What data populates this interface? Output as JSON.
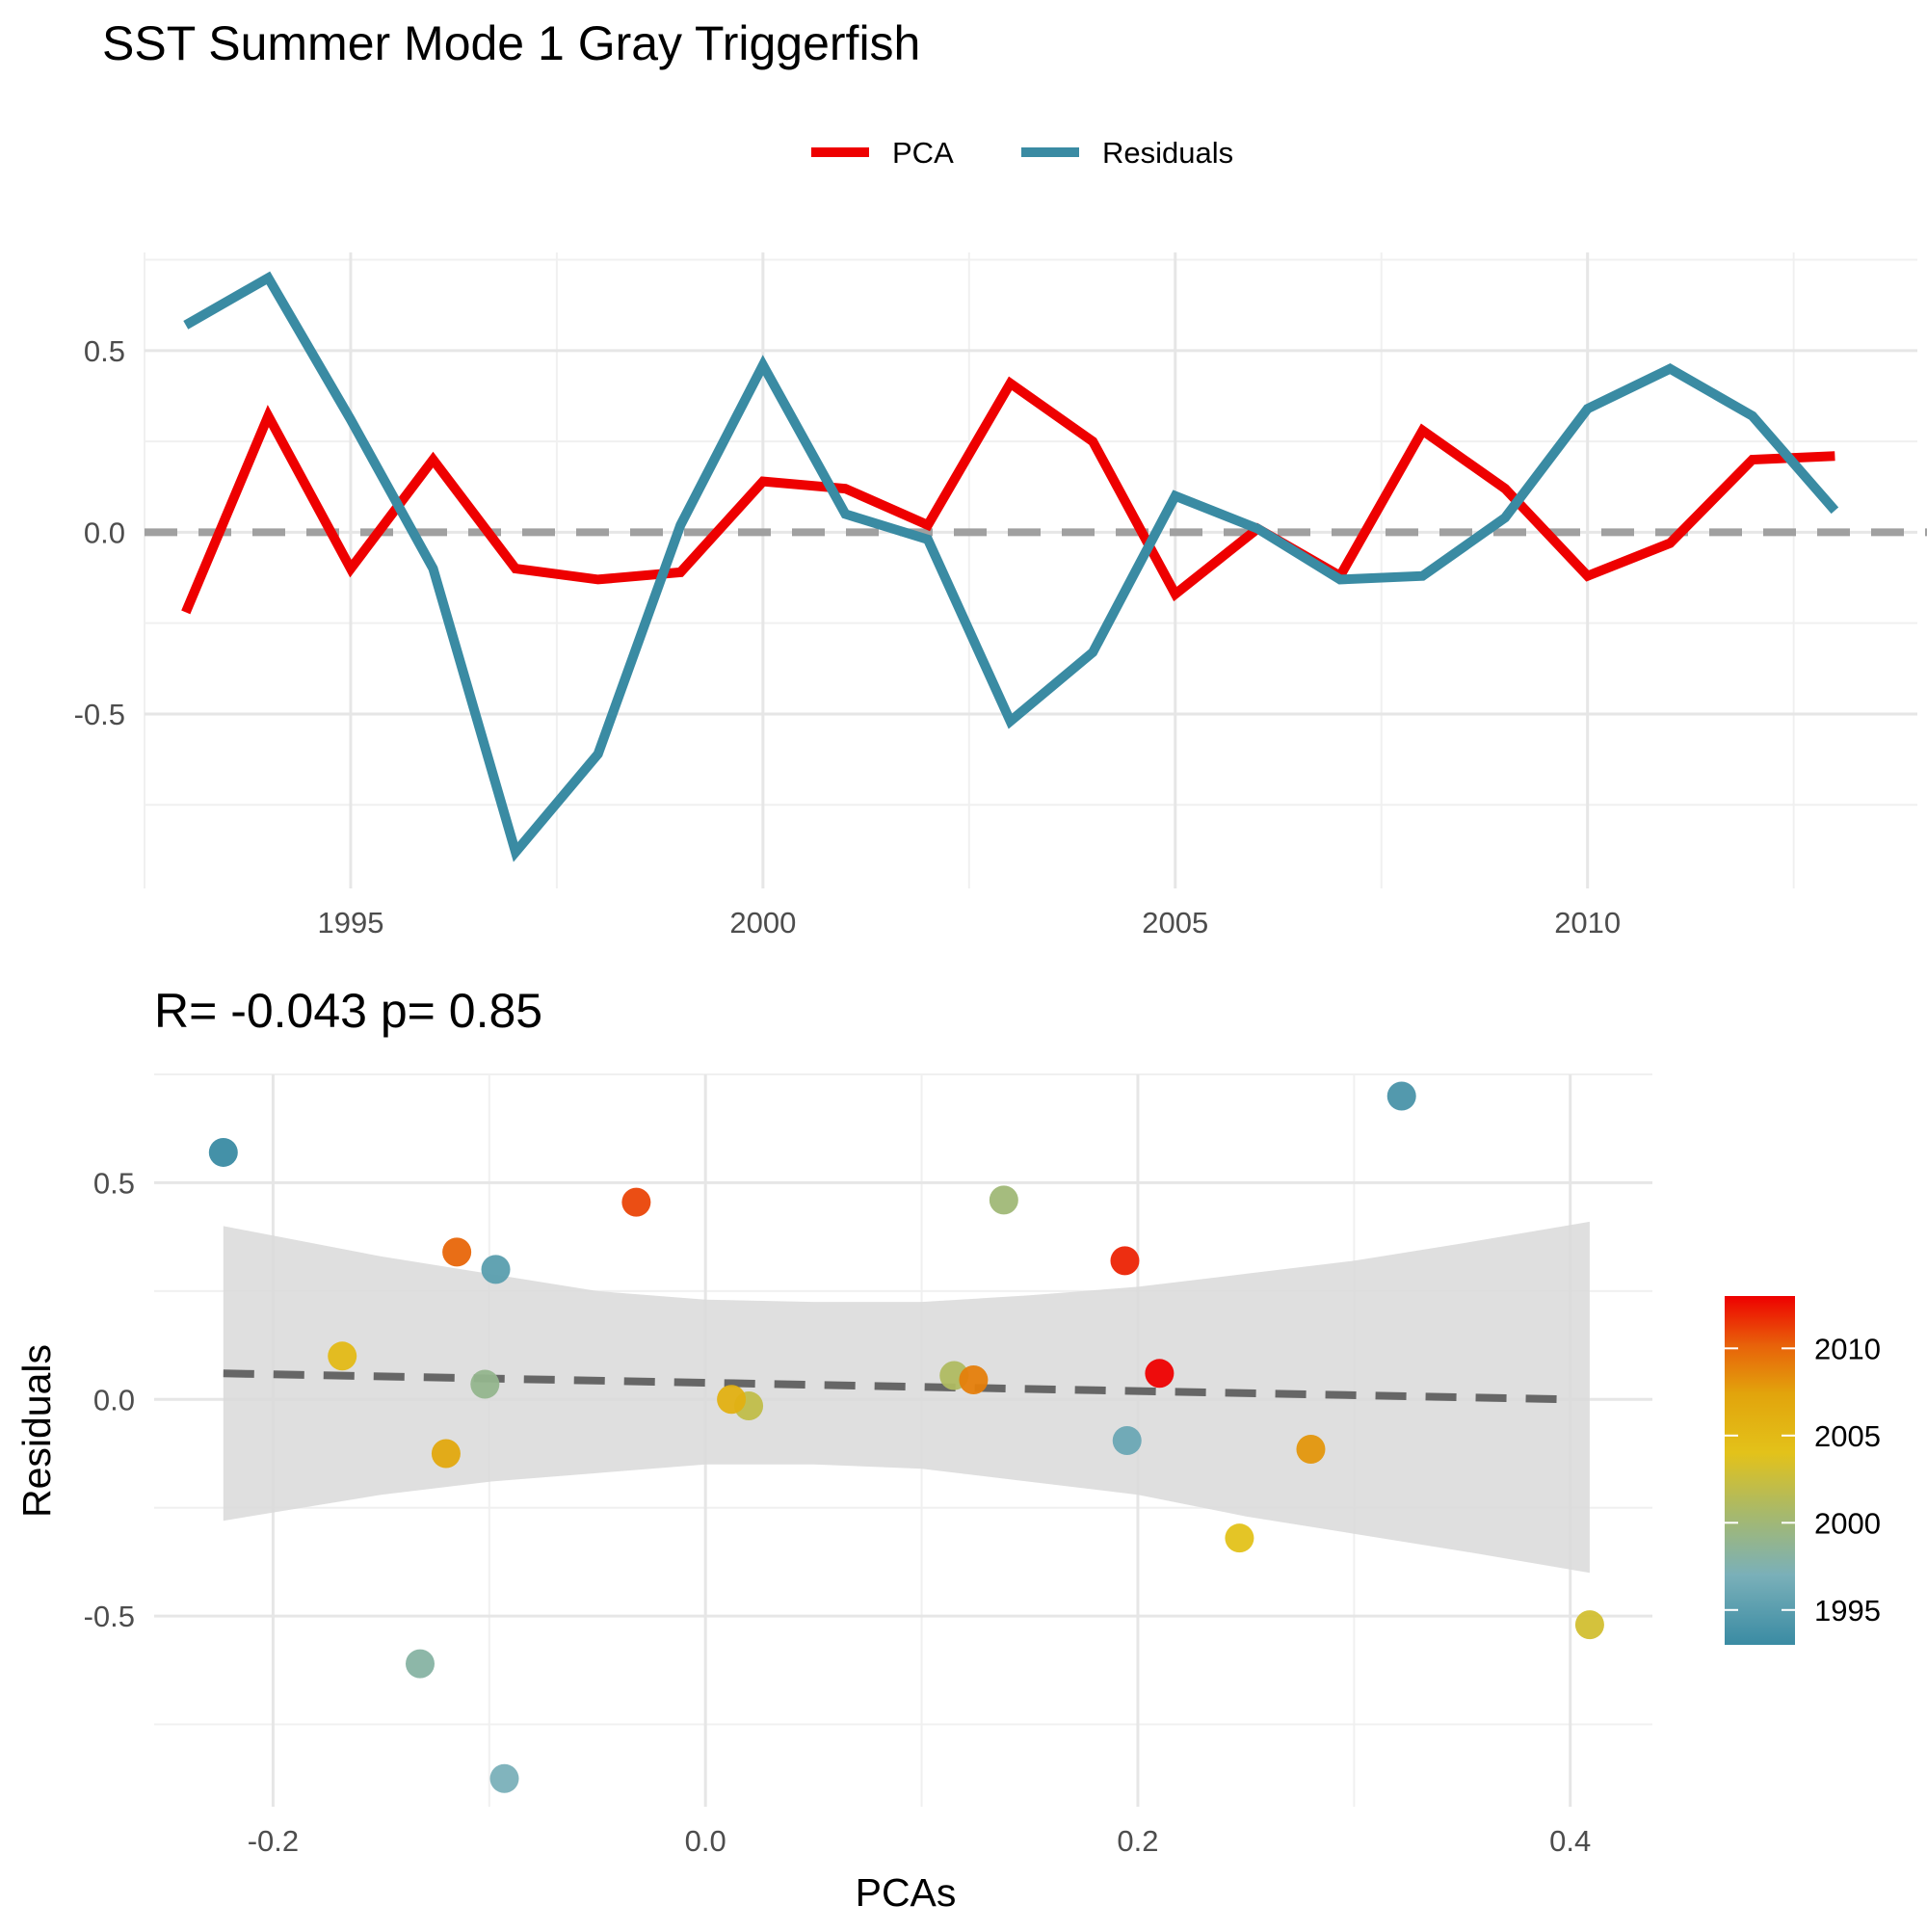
{
  "title": "SST Summer Mode 1 Gray Triggerfish",
  "colors": {
    "pca": "#ee0000",
    "residuals": "#3a8ba3",
    "zero_line": "#a0a0a0",
    "fit_line": "#666666",
    "ribbon": "#d9d9d9"
  },
  "chart_data": [
    {
      "type": "line",
      "legend": {
        "position": "top",
        "entries": [
          "PCA",
          "Residuals"
        ]
      },
      "x": [
        1993,
        1994,
        1995,
        1996,
        1997,
        1998,
        1999,
        2000,
        2001,
        2002,
        2003,
        2004,
        2005,
        2006,
        2007,
        2008,
        2009,
        2010,
        2011,
        2012,
        2013
      ],
      "series": [
        {
          "name": "PCA",
          "color": "#ee0000",
          "values": [
            -0.22,
            0.32,
            -0.1,
            0.2,
            -0.1,
            -0.13,
            -0.11,
            0.14,
            0.12,
            0.02,
            0.41,
            0.25,
            -0.17,
            0.01,
            -0.12,
            0.28,
            0.12,
            -0.12,
            -0.03,
            0.2,
            0.21
          ]
        },
        {
          "name": "Residuals",
          "color": "#3a8ba3",
          "values": [
            0.57,
            0.7,
            0.31,
            -0.1,
            -0.88,
            -0.61,
            0.02,
            0.46,
            0.05,
            -0.02,
            -0.52,
            -0.33,
            0.1,
            0.01,
            -0.13,
            -0.12,
            0.04,
            0.34,
            0.45,
            0.32,
            0.06
          ]
        }
      ],
      "xticks": [
        "1995",
        "2000",
        "2005",
        "2010"
      ],
      "yticks": [
        "-0.5",
        "0.0",
        "0.5"
      ],
      "xlim": [
        1992.5,
        2014.0
      ],
      "ylim": [
        -0.98,
        0.77
      ],
      "reference_line": 0,
      "grid": true
    },
    {
      "type": "scatter",
      "subtitle": "R= -0.043  p= 0.85",
      "xlabel": "PCAs",
      "ylabel": "Residuals",
      "xticks": [
        "-0.2",
        "0.0",
        "0.2",
        "0.4"
      ],
      "yticks": [
        "-0.5",
        "0.0",
        "0.5"
      ],
      "xlim": [
        -0.255,
        0.438
      ],
      "ylim": [
        -0.94,
        0.75
      ],
      "colorbar": {
        "ticks": [
          "1995",
          "2000",
          "2005",
          "2010"
        ],
        "range": [
          1993,
          2013
        ]
      },
      "fit": {
        "x0": -0.223,
        "y0": 0.06,
        "x1": 0.4,
        "y1": 0.0
      },
      "ribbon": {
        "x": [
          -0.223,
          -0.15,
          -0.1,
          -0.05,
          0.0,
          0.05,
          0.1,
          0.15,
          0.2,
          0.25,
          0.3,
          0.35,
          0.409
        ],
        "upper": [
          0.4,
          0.33,
          0.29,
          0.25,
          0.23,
          0.225,
          0.225,
          0.24,
          0.26,
          0.29,
          0.32,
          0.36,
          0.41
        ],
        "lower": [
          -0.28,
          -0.22,
          -0.19,
          -0.17,
          -0.15,
          -0.15,
          -0.16,
          -0.19,
          -0.22,
          -0.27,
          -0.31,
          -0.35,
          -0.4
        ]
      },
      "points": [
        {
          "year": 1993,
          "x": -0.223,
          "y": 0.57
        },
        {
          "year": 1994,
          "x": 0.322,
          "y": 0.7
        },
        {
          "year": 1995,
          "x": -0.097,
          "y": 0.3
        },
        {
          "year": 1996,
          "x": 0.195,
          "y": -0.095
        },
        {
          "year": 1997,
          "x": -0.093,
          "y": -0.875
        },
        {
          "year": 1998,
          "x": -0.132,
          "y": -0.61
        },
        {
          "year": 1999,
          "x": -0.102,
          "y": 0.035
        },
        {
          "year": 2000,
          "x": 0.138,
          "y": 0.46
        },
        {
          "year": 2001,
          "x": 0.115,
          "y": 0.055
        },
        {
          "year": 2002,
          "x": 0.02,
          "y": -0.015
        },
        {
          "year": 2003,
          "x": 0.409,
          "y": -0.52
        },
        {
          "year": 2004,
          "x": 0.247,
          "y": -0.32
        },
        {
          "year": 2005,
          "x": -0.168,
          "y": 0.1
        },
        {
          "year": 2006,
          "x": 0.012,
          "y": 0.0
        },
        {
          "year": 2007,
          "x": -0.12,
          "y": -0.125
        },
        {
          "year": 2008,
          "x": 0.28,
          "y": -0.115
        },
        {
          "year": 2009,
          "x": 0.124,
          "y": 0.045
        },
        {
          "year": 2010,
          "x": -0.115,
          "y": 0.34
        },
        {
          "year": 2011,
          "x": -0.032,
          "y": 0.455
        },
        {
          "year": 2012,
          "x": 0.194,
          "y": 0.32
        },
        {
          "year": 2013,
          "x": 0.21,
          "y": 0.06
        }
      ]
    }
  ]
}
